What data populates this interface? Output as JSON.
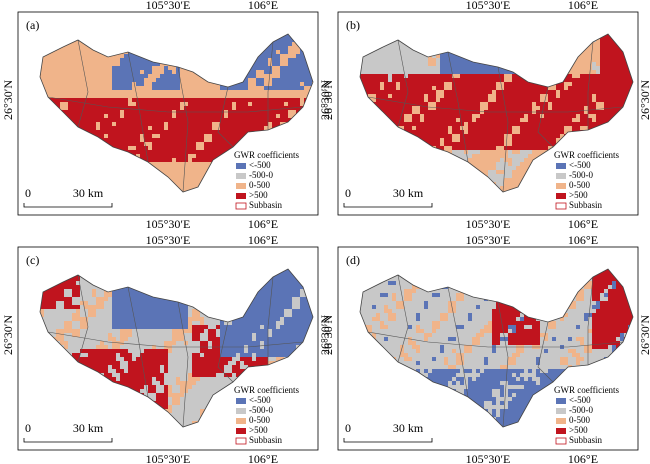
{
  "axes": {
    "top": [
      "105°30′E",
      "106°E"
    ],
    "bottom": [
      "105°30′E",
      "106°E"
    ],
    "left": "26°30′N",
    "right": "26°30′N"
  },
  "panels": [
    {
      "label": "(a)"
    },
    {
      "label": "(b)"
    },
    {
      "label": "(c)"
    },
    {
      "label": "(d)"
    }
  ],
  "legend": {
    "title": "GWR coefficients",
    "entries": [
      {
        "label": "<-500",
        "color": "#5b74b6"
      },
      {
        "label": "-500-0",
        "color": "#c8c8c8"
      },
      {
        "label": "0-500",
        "color": "#f0b48a"
      },
      {
        "label": ">500",
        "color": "#c0141e"
      },
      {
        "label": "Subbasin",
        "color": "#ffffff"
      }
    ]
  },
  "scale_bar": {
    "start": "0",
    "end": "30 km"
  }
}
